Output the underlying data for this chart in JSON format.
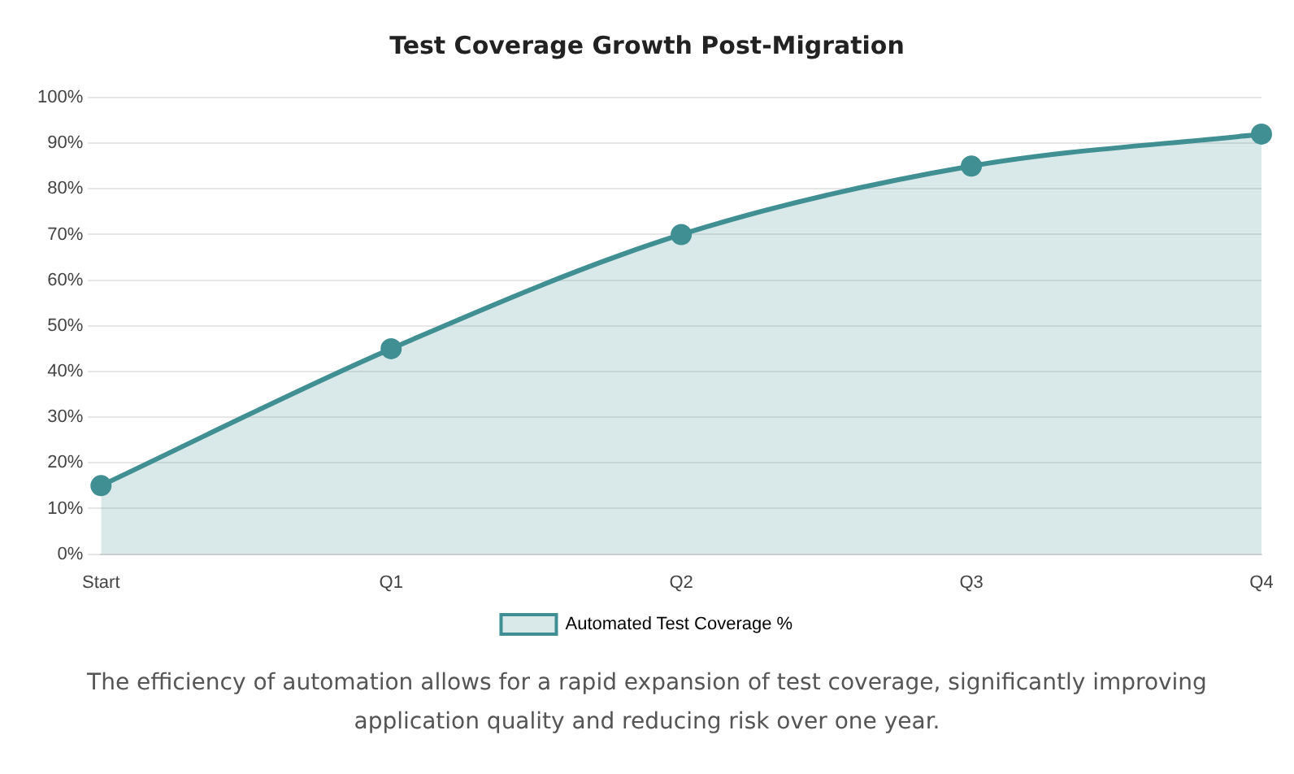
{
  "chart_data": {
    "type": "area",
    "title": "Test Coverage Growth Post-Migration",
    "categories": [
      "Start",
      "Q1",
      "Q2",
      "Q3",
      "Q4"
    ],
    "series": [
      {
        "name": "Automated Test Coverage %",
        "color": "#3f8f93",
        "values": [
          15,
          45,
          70,
          85,
          92
        ]
      }
    ],
    "ylim": [
      0,
      100
    ],
    "yticks": [
      {
        "value": 0,
        "label": "0%"
      },
      {
        "value": 10,
        "label": "10%"
      },
      {
        "value": 20,
        "label": "20%"
      },
      {
        "value": 30,
        "label": "30%"
      },
      {
        "value": 40,
        "label": "40%"
      },
      {
        "value": 50,
        "label": "50%"
      },
      {
        "value": 60,
        "label": "60%"
      },
      {
        "value": 70,
        "label": "70%"
      },
      {
        "value": 80,
        "label": "80%"
      },
      {
        "value": 90,
        "label": "90%"
      },
      {
        "value": 100,
        "label": "100%"
      }
    ],
    "grid": "y",
    "legend": "bottom",
    "marker": "circle",
    "annotations": [
      "The efficiency of automation allows for a rapid expansion of test coverage, significantly improving application quality and reducing risk over one year."
    ]
  }
}
